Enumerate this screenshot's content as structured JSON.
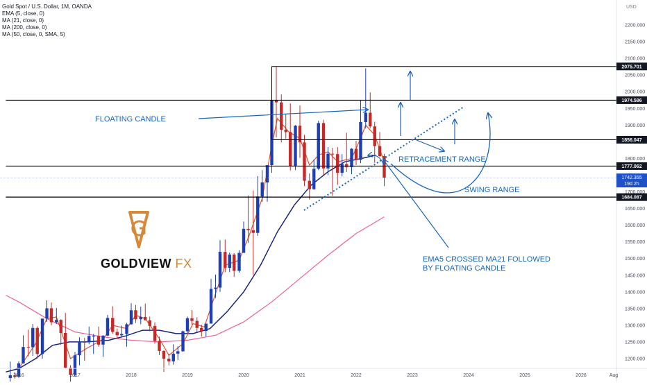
{
  "chart_data": {
    "type": "candlestick",
    "title": "Gold Spot / U.S. Dollar, 1M, OANDA",
    "indicators": [
      "EMA (5, close, 0)",
      "MA (21, close, 0)",
      "MA (200, close, 0)",
      "MA (50, close, 0, SMA, 5)"
    ],
    "currency_label": "USD",
    "ylim": [
      1180,
      2260
    ],
    "y_ticks": [
      1200,
      1250,
      1300,
      1350,
      1400,
      1450,
      1500,
      1550,
      1600,
      1650,
      1700,
      1750,
      1800,
      1850,
      1900,
      1950,
      2000,
      2050,
      2100,
      2150,
      2200
    ],
    "y_tick_labels": [
      "1200.000",
      "1250.000",
      "1300.000",
      "1350.000",
      "1400.000",
      "1450.000",
      "1500.000",
      "1550.000",
      "1600.000",
      "1650.000",
      "1700.000",
      "1750.000",
      "1800.000",
      "1850.000",
      "1900.000",
      "1950.000",
      "2000.000",
      "2050.000",
      "2100.000",
      "2150.000",
      "2200.000"
    ],
    "x_tick_labels": [
      "2016",
      "2017",
      "2018",
      "2019",
      "2020",
      "2021",
      "2022",
      "2023",
      "2024",
      "2025",
      "2026",
      "Aug"
    ],
    "x_tick_years": [
      2016,
      2017,
      2018,
      2019,
      2020,
      2021,
      2022,
      2023,
      2024,
      2025,
      2026,
      2026.58
    ],
    "x_range": [
      2015.77,
      2026.63
    ],
    "candles": [
      {
        "t": 2015.85,
        "o": 1142,
        "h": 1191,
        "l": 1130,
        "c": 1150
      },
      {
        "t": 2015.93,
        "o": 1150,
        "h": 1160,
        "l": 1140,
        "c": 1145
      },
      {
        "t": 2016.0,
        "o": 1146,
        "h": 1192,
        "l": 1142,
        "c": 1186
      },
      {
        "t": 2016.08,
        "o": 1186,
        "h": 1270,
        "l": 1185,
        "c": 1235
      },
      {
        "t": 2016.17,
        "o": 1235,
        "h": 1287,
        "l": 1207,
        "c": 1234
      },
      {
        "t": 2016.25,
        "o": 1234,
        "h": 1304,
        "l": 1208,
        "c": 1292
      },
      {
        "t": 2016.33,
        "o": 1292,
        "h": 1297,
        "l": 1200,
        "c": 1214
      },
      {
        "t": 2016.42,
        "o": 1214,
        "h": 1315,
        "l": 1200,
        "c": 1320
      },
      {
        "t": 2016.5,
        "o": 1320,
        "h": 1375,
        "l": 1310,
        "c": 1351
      },
      {
        "t": 2016.58,
        "o": 1351,
        "h": 1368,
        "l": 1300,
        "c": 1309
      },
      {
        "t": 2016.67,
        "o": 1309,
        "h": 1352,
        "l": 1304,
        "c": 1316
      },
      {
        "t": 2016.75,
        "o": 1316,
        "h": 1318,
        "l": 1241,
        "c": 1277
      },
      {
        "t": 2016.83,
        "o": 1277,
        "h": 1337,
        "l": 1172,
        "c": 1173
      },
      {
        "t": 2016.92,
        "o": 1173,
        "h": 1180,
        "l": 1122,
        "c": 1151
      },
      {
        "t": 2017.0,
        "o": 1151,
        "h": 1220,
        "l": 1146,
        "c": 1210
      },
      {
        "t": 2017.08,
        "o": 1210,
        "h": 1264,
        "l": 1180,
        "c": 1250
      },
      {
        "t": 2017.17,
        "o": 1250,
        "h": 1262,
        "l": 1194,
        "c": 1249
      },
      {
        "t": 2017.25,
        "o": 1249,
        "h": 1296,
        "l": 1243,
        "c": 1268
      },
      {
        "t": 2017.33,
        "o": 1268,
        "h": 1274,
        "l": 1214,
        "c": 1268
      },
      {
        "t": 2017.42,
        "o": 1268,
        "h": 1296,
        "l": 1236,
        "c": 1242
      },
      {
        "t": 2017.5,
        "o": 1242,
        "h": 1270,
        "l": 1205,
        "c": 1269
      },
      {
        "t": 2017.58,
        "o": 1269,
        "h": 1331,
        "l": 1267,
        "c": 1322
      },
      {
        "t": 2017.67,
        "o": 1322,
        "h": 1357,
        "l": 1275,
        "c": 1280
      },
      {
        "t": 2017.75,
        "o": 1280,
        "h": 1290,
        "l": 1260,
        "c": 1270
      },
      {
        "t": 2017.83,
        "o": 1270,
        "h": 1299,
        "l": 1264,
        "c": 1274
      },
      {
        "t": 2017.92,
        "o": 1274,
        "h": 1307,
        "l": 1236,
        "c": 1303
      },
      {
        "t": 2018.0,
        "o": 1303,
        "h": 1366,
        "l": 1302,
        "c": 1345
      },
      {
        "t": 2018.08,
        "o": 1345,
        "h": 1361,
        "l": 1307,
        "c": 1318
      },
      {
        "t": 2018.17,
        "o": 1318,
        "h": 1356,
        "l": 1303,
        "c": 1325
      },
      {
        "t": 2018.25,
        "o": 1325,
        "h": 1365,
        "l": 1315,
        "c": 1315
      },
      {
        "t": 2018.33,
        "o": 1315,
        "h": 1326,
        "l": 1282,
        "c": 1298
      },
      {
        "t": 2018.42,
        "o": 1298,
        "h": 1309,
        "l": 1245,
        "c": 1253
      },
      {
        "t": 2018.5,
        "o": 1253,
        "h": 1266,
        "l": 1211,
        "c": 1223
      },
      {
        "t": 2018.58,
        "o": 1223,
        "h": 1225,
        "l": 1160,
        "c": 1200
      },
      {
        "t": 2018.67,
        "o": 1200,
        "h": 1214,
        "l": 1180,
        "c": 1192
      },
      {
        "t": 2018.75,
        "o": 1192,
        "h": 1243,
        "l": 1182,
        "c": 1215
      },
      {
        "t": 2018.83,
        "o": 1215,
        "h": 1237,
        "l": 1196,
        "c": 1222
      },
      {
        "t": 2018.92,
        "o": 1222,
        "h": 1284,
        "l": 1221,
        "c": 1282
      },
      {
        "t": 2019.0,
        "o": 1282,
        "h": 1326,
        "l": 1276,
        "c": 1321
      },
      {
        "t": 2019.08,
        "o": 1321,
        "h": 1346,
        "l": 1302,
        "c": 1313
      },
      {
        "t": 2019.17,
        "o": 1313,
        "h": 1324,
        "l": 1280,
        "c": 1292
      },
      {
        "t": 2019.25,
        "o": 1292,
        "h": 1302,
        "l": 1266,
        "c": 1283
      },
      {
        "t": 2019.33,
        "o": 1283,
        "h": 1305,
        "l": 1266,
        "c": 1305
      },
      {
        "t": 2019.42,
        "o": 1305,
        "h": 1439,
        "l": 1305,
        "c": 1409
      },
      {
        "t": 2019.5,
        "o": 1409,
        "h": 1452,
        "l": 1382,
        "c": 1413
      },
      {
        "t": 2019.58,
        "o": 1413,
        "h": 1555,
        "l": 1400,
        "c": 1520
      },
      {
        "t": 2019.67,
        "o": 1520,
        "h": 1557,
        "l": 1459,
        "c": 1472
      },
      {
        "t": 2019.75,
        "o": 1472,
        "h": 1518,
        "l": 1459,
        "c": 1512
      },
      {
        "t": 2019.83,
        "o": 1512,
        "h": 1516,
        "l": 1445,
        "c": 1463
      },
      {
        "t": 2019.92,
        "o": 1463,
        "h": 1525,
        "l": 1458,
        "c": 1517
      },
      {
        "t": 2020.0,
        "o": 1517,
        "h": 1611,
        "l": 1517,
        "c": 1589
      },
      {
        "t": 2020.08,
        "o": 1589,
        "h": 1689,
        "l": 1547,
        "c": 1585
      },
      {
        "t": 2020.17,
        "o": 1585,
        "h": 1704,
        "l": 1451,
        "c": 1577
      },
      {
        "t": 2020.25,
        "o": 1577,
        "h": 1747,
        "l": 1568,
        "c": 1686
      },
      {
        "t": 2020.33,
        "o": 1686,
        "h": 1765,
        "l": 1670,
        "c": 1728
      },
      {
        "t": 2020.42,
        "o": 1728,
        "h": 1779,
        "l": 1670,
        "c": 1780
      },
      {
        "t": 2020.5,
        "o": 1780,
        "h": 1984,
        "l": 1757,
        "c": 1975
      },
      {
        "t": 2020.58,
        "o": 1975,
        "h": 2075,
        "l": 1863,
        "c": 1968
      },
      {
        "t": 2020.67,
        "o": 1968,
        "h": 1992,
        "l": 1848,
        "c": 1886
      },
      {
        "t": 2020.75,
        "o": 1886,
        "h": 1933,
        "l": 1860,
        "c": 1879
      },
      {
        "t": 2020.83,
        "o": 1879,
        "h": 1965,
        "l": 1764,
        "c": 1776
      },
      {
        "t": 2020.92,
        "o": 1776,
        "h": 1900,
        "l": 1765,
        "c": 1898
      },
      {
        "t": 2021.0,
        "o": 1898,
        "h": 1959,
        "l": 1802,
        "c": 1848
      },
      {
        "t": 2021.08,
        "o": 1848,
        "h": 1871,
        "l": 1717,
        "c": 1733
      },
      {
        "t": 2021.17,
        "o": 1733,
        "h": 1755,
        "l": 1677,
        "c": 1708
      },
      {
        "t": 2021.25,
        "o": 1708,
        "h": 1797,
        "l": 1706,
        "c": 1769
      },
      {
        "t": 2021.33,
        "o": 1769,
        "h": 1913,
        "l": 1765,
        "c": 1906
      },
      {
        "t": 2021.42,
        "o": 1906,
        "h": 1916,
        "l": 1751,
        "c": 1770
      },
      {
        "t": 2021.5,
        "o": 1770,
        "h": 1834,
        "l": 1750,
        "c": 1814
      },
      {
        "t": 2021.58,
        "o": 1814,
        "h": 1832,
        "l": 1688,
        "c": 1813
      },
      {
        "t": 2021.67,
        "o": 1813,
        "h": 1834,
        "l": 1721,
        "c": 1757
      },
      {
        "t": 2021.75,
        "o": 1757,
        "h": 1813,
        "l": 1746,
        "c": 1783
      },
      {
        "t": 2021.83,
        "o": 1783,
        "h": 1877,
        "l": 1759,
        "c": 1774
      },
      {
        "t": 2021.92,
        "o": 1774,
        "h": 1831,
        "l": 1753,
        "c": 1829
      },
      {
        "t": 2022.0,
        "o": 1829,
        "h": 1853,
        "l": 1780,
        "c": 1796
      },
      {
        "t": 2022.08,
        "o": 1796,
        "h": 1974,
        "l": 1786,
        "c": 1909
      },
      {
        "t": 2022.17,
        "o": 1909,
        "h": 2070,
        "l": 1890,
        "c": 1937
      },
      {
        "t": 2022.25,
        "o": 1937,
        "h": 1998,
        "l": 1890,
        "c": 1896
      },
      {
        "t": 2022.33,
        "o": 1896,
        "h": 1910,
        "l": 1787,
        "c": 1837
      },
      {
        "t": 2022.42,
        "o": 1837,
        "h": 1879,
        "l": 1805,
        "c": 1807
      },
      {
        "t": 2022.5,
        "o": 1807,
        "h": 1814,
        "l": 1717,
        "c": 1742
      }
    ],
    "ema5": [
      [
        2016.0,
        1170
      ],
      [
        2016.3,
        1245
      ],
      [
        2016.5,
        1320
      ],
      [
        2016.67,
        1325
      ],
      [
        2016.92,
        1200
      ],
      [
        2017.2,
        1230
      ],
      [
        2017.5,
        1258
      ],
      [
        2017.67,
        1300
      ],
      [
        2017.92,
        1290
      ],
      [
        2018.08,
        1330
      ],
      [
        2018.25,
        1320
      ],
      [
        2018.5,
        1260
      ],
      [
        2018.67,
        1210
      ],
      [
        2018.92,
        1245
      ],
      [
        2019.1,
        1305
      ],
      [
        2019.3,
        1295
      ],
      [
        2019.5,
        1395
      ],
      [
        2019.67,
        1480
      ],
      [
        2019.92,
        1495
      ],
      [
        2020.1,
        1570
      ],
      [
        2020.33,
        1680
      ],
      [
        2020.5,
        1840
      ],
      [
        2020.6,
        1920
      ],
      [
        2020.8,
        1880
      ],
      [
        2021.0,
        1860
      ],
      [
        2021.17,
        1780
      ],
      [
        2021.33,
        1810
      ],
      [
        2021.5,
        1820
      ],
      [
        2021.67,
        1790
      ],
      [
        2021.92,
        1800
      ],
      [
        2022.08,
        1860
      ],
      [
        2022.17,
        1900
      ],
      [
        2022.33,
        1870
      ],
      [
        2022.5,
        1790
      ]
    ],
    "ma21": [
      [
        2015.77,
        1160
      ],
      [
        2016.0,
        1170
      ],
      [
        2016.3,
        1200
      ],
      [
        2016.6,
        1240
      ],
      [
        2016.9,
        1250
      ],
      [
        2017.2,
        1250
      ],
      [
        2017.6,
        1255
      ],
      [
        2017.9,
        1268
      ],
      [
        2018.2,
        1285
      ],
      [
        2018.5,
        1285
      ],
      [
        2018.8,
        1275
      ],
      [
        2019.1,
        1275
      ],
      [
        2019.4,
        1290
      ],
      [
        2019.7,
        1340
      ],
      [
        2020.0,
        1400
      ],
      [
        2020.3,
        1480
      ],
      [
        2020.6,
        1580
      ],
      [
        2020.9,
        1660
      ],
      [
        2021.2,
        1720
      ],
      [
        2021.5,
        1760
      ],
      [
        2021.8,
        1790
      ],
      [
        2022.1,
        1800
      ],
      [
        2022.35,
        1810
      ]
    ],
    "ma200": [
      [
        2015.77,
        1390
      ],
      [
        2016.0,
        1370
      ],
      [
        2016.5,
        1320
      ],
      [
        2017.0,
        1280
      ],
      [
        2017.5,
        1265
      ],
      [
        2018.0,
        1255
      ],
      [
        2018.5,
        1250
      ],
      [
        2019.0,
        1255
      ],
      [
        2019.5,
        1270
      ],
      [
        2020.0,
        1310
      ],
      [
        2020.5,
        1370
      ],
      [
        2021.0,
        1440
      ],
      [
        2021.5,
        1510
      ],
      [
        2022.0,
        1575
      ],
      [
        2022.5,
        1625
      ]
    ],
    "price_lines": [
      {
        "value": 2075.701,
        "label": "2075.701",
        "start": 2020.5
      },
      {
        "value": 1974.586,
        "label": "1974.586",
        "start": 2015.77
      },
      {
        "value": 1856.047,
        "label": "1856.047",
        "start": 2020.5
      },
      {
        "value": 1777.062,
        "label": "1777.062",
        "start": 2015.77
      },
      {
        "value": 1684.087,
        "label": "1684.087",
        "start": 2015.77
      }
    ],
    "current_price": {
      "value": 1742.355,
      "label": "1742.355",
      "countdown": "19d 2h"
    },
    "annotations": [
      {
        "text": "FLOATING CANDLE"
      },
      {
        "text": "RETRACEMENT RANGE"
      },
      {
        "text": "SWING RANGE"
      },
      {
        "text": "EMA5 CROSSED MA21 FOLLOWED"
      },
      {
        "text": "BY FLOATING CANDLE"
      }
    ],
    "colors": {
      "bull": "#1e3fb3",
      "bear": "#c62828",
      "ema5": "#e0532a",
      "ma21": "#1a237e",
      "ma200": "#f06292",
      "annotation": "#1565c0",
      "level": "#000000"
    }
  },
  "brand": {
    "name_main": "GOLDVIEW",
    "name_accent": "FX",
    "accent_color": "#d4893b"
  }
}
